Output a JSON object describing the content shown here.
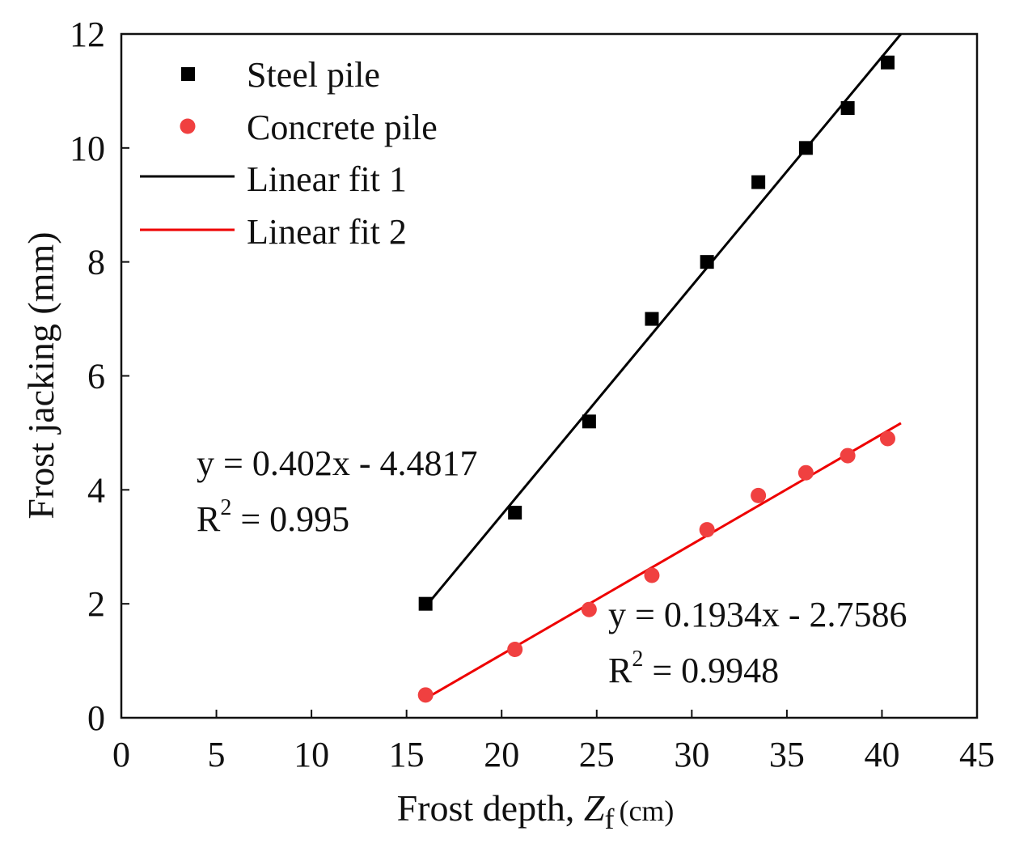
{
  "chart_data": {
    "type": "scatter",
    "xlabel": {
      "prefix": "Frost depth, ",
      "symbol": "Z",
      "subscript": "f",
      "unit": "(cm)"
    },
    "ylabel": "Frost jacking (mm)",
    "xlim": [
      0,
      45
    ],
    "ylim": [
      0,
      12
    ],
    "xticks": [
      0,
      5,
      10,
      15,
      20,
      25,
      30,
      35,
      40,
      45
    ],
    "yticks": [
      0,
      2,
      4,
      6,
      8,
      10,
      12
    ],
    "series": [
      {
        "name": "Steel pile",
        "marker": "square",
        "color": "#000000",
        "points": [
          {
            "x": 16.0,
            "y": 2.0
          },
          {
            "x": 20.7,
            "y": 3.6
          },
          {
            "x": 24.6,
            "y": 5.2
          },
          {
            "x": 27.9,
            "y": 7.0
          },
          {
            "x": 30.8,
            "y": 8.0
          },
          {
            "x": 33.5,
            "y": 9.4
          },
          {
            "x": 36.0,
            "y": 10.0
          },
          {
            "x": 38.2,
            "y": 10.7
          },
          {
            "x": 40.3,
            "y": 11.5
          }
        ]
      },
      {
        "name": "Concrete pile",
        "marker": "circle",
        "color": "#f04040",
        "points": [
          {
            "x": 16.0,
            "y": 0.4
          },
          {
            "x": 20.7,
            "y": 1.2
          },
          {
            "x": 24.6,
            "y": 1.9
          },
          {
            "x": 27.9,
            "y": 2.5
          },
          {
            "x": 30.8,
            "y": 3.3
          },
          {
            "x": 33.5,
            "y": 3.9
          },
          {
            "x": 36.0,
            "y": 4.3
          },
          {
            "x": 38.2,
            "y": 4.6
          },
          {
            "x": 40.3,
            "y": 4.9
          }
        ]
      }
    ],
    "fits": [
      {
        "name": "Linear fit 1",
        "color": "#000000",
        "slope": 0.402,
        "intercept": -4.4817,
        "x_range": [
          16.0,
          41.0
        ],
        "equation": "y = 0.402x - 4.4817",
        "r2_label": "R",
        "r2_sup": "2",
        "r2_value": " = 0.995"
      },
      {
        "name": "Linear fit 2",
        "color": "#ee0000",
        "slope": 0.1934,
        "intercept": -2.7586,
        "x_range": [
          16.0,
          41.0
        ],
        "equation": "y = 0.1934x - 2.7586",
        "r2_label": "R",
        "r2_sup": "2",
        "r2_value": " = 0.9948"
      }
    ],
    "legend_position": "top-left",
    "grid": false
  }
}
